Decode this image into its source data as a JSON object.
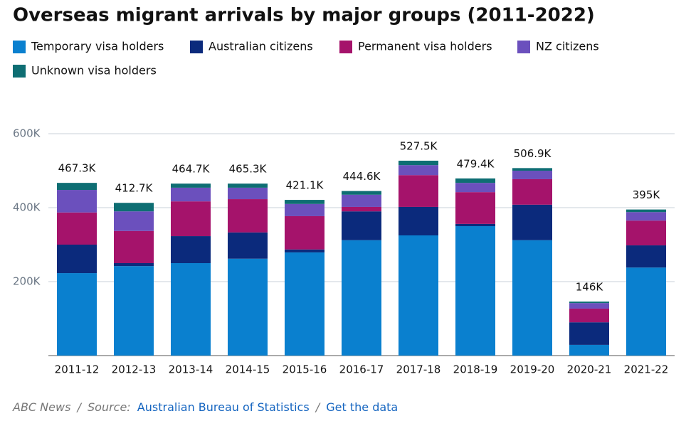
{
  "chart_data": {
    "type": "stacked_bar",
    "title": "Overseas migrant arrivals by major groups (2011-2022)",
    "categories": [
      "2011-12",
      "2012-13",
      "2013-14",
      "2014-15",
      "2015-16",
      "2016-17",
      "2017-18",
      "2018-19",
      "2019-20",
      "2020-21",
      "2021-22"
    ],
    "series": [
      {
        "name": "Temporary visa holders",
        "color": "#0a80cf",
        "values": [
          223,
          242,
          250,
          262,
          279,
          312,
          325,
          350,
          312,
          29,
          238
        ]
      },
      {
        "name": "Australian citizens",
        "color": "#0b2a7c",
        "values": [
          77,
          8,
          73,
          71,
          8,
          78,
          77,
          6,
          96,
          61,
          60
        ]
      },
      {
        "name": "Permanent visa holders",
        "color": "#a5136b",
        "values": [
          87,
          87,
          94,
          90,
          90,
          12,
          86,
          86,
          69,
          37,
          67
        ]
      },
      {
        "name": "NZ citizens",
        "color": "#6b50bd",
        "values": [
          61,
          53,
          37,
          31,
          33,
          33,
          27,
          25,
          23,
          15,
          23
        ]
      },
      {
        "name": "Unknown visa holders",
        "color": "#0e6e73",
        "values": [
          19,
          23,
          11,
          11,
          11,
          10,
          12,
          12,
          7,
          4,
          7
        ]
      }
    ],
    "totals": {
      "values": [
        467.3,
        412.7,
        464.7,
        465.3,
        421.1,
        444.6,
        527.5,
        479.4,
        506.9,
        146,
        395
      ],
      "value_labels": [
        "467.3K",
        "412.7K",
        "464.7K",
        "465.3K",
        "421.1K",
        "444.6K",
        "527.5K",
        "479.4K",
        "506.9K",
        "146K",
        "395K"
      ]
    },
    "ylim": [
      0,
      600
    ],
    "yticks": [
      {
        "value": 200,
        "label": "200K"
      },
      {
        "value": 400,
        "label": "400K"
      },
      {
        "value": 600,
        "label": "600K"
      }
    ],
    "grid": true
  },
  "footer": {
    "outlet": "ABC News",
    "separator": "/",
    "source_label": "Source:",
    "source": "Australian Bureau of Statistics",
    "link": "Get the data"
  }
}
